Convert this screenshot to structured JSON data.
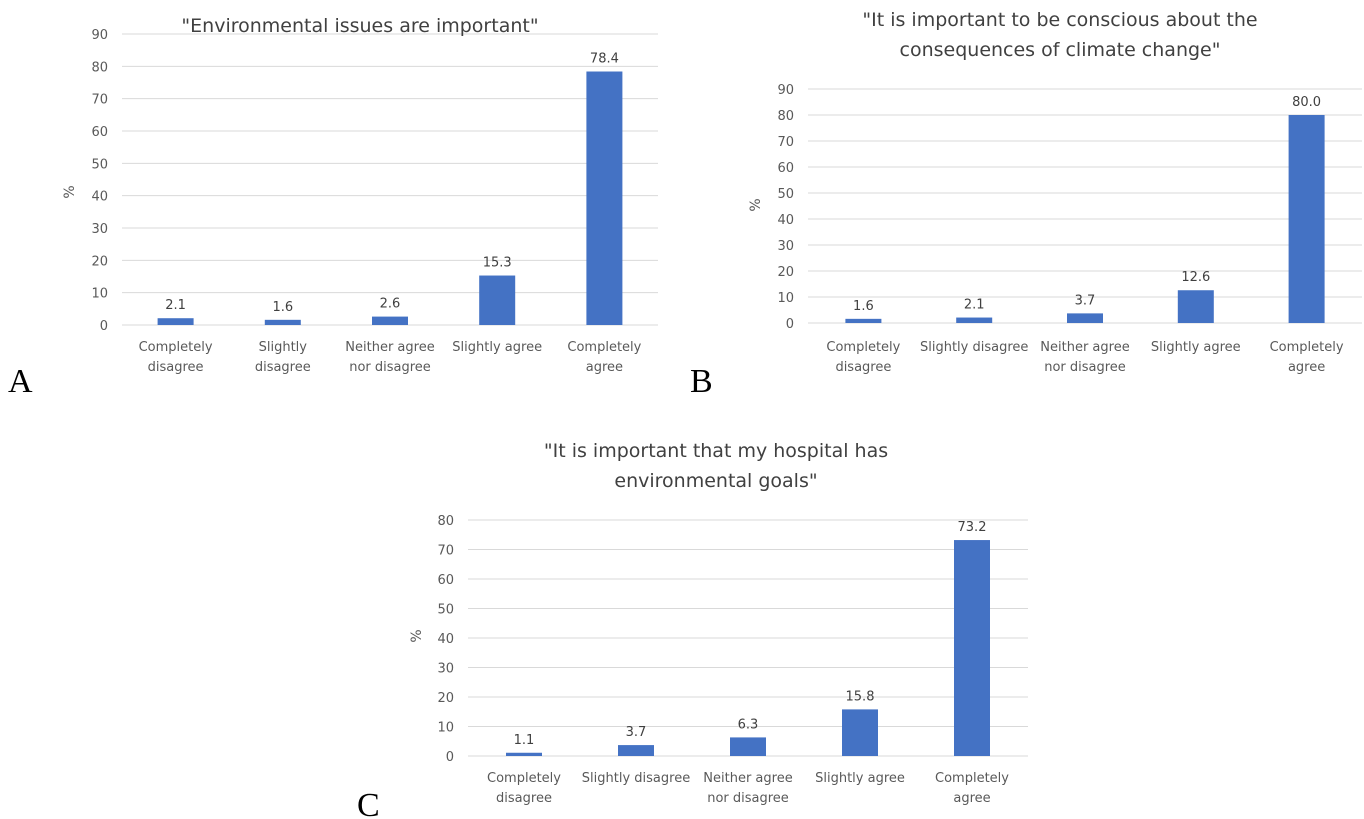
{
  "colors": {
    "bar": "#4472c4",
    "grid": "#d9d9d9",
    "text": "#595959"
  },
  "chart_data": [
    {
      "panel": "A",
      "type": "bar",
      "title_lines": [
        "\"Environmental issues are important\""
      ],
      "xlabel": "",
      "ylabel": "%",
      "categories": [
        [
          "Completely",
          "disagree"
        ],
        [
          "Slightly",
          "disagree"
        ],
        [
          "Neither agree",
          "nor disagree"
        ],
        [
          "Slightly agree"
        ],
        [
          "Completely",
          "agree"
        ]
      ],
      "values": [
        2.1,
        1.6,
        2.6,
        15.3,
        78.4
      ],
      "value_labels": [
        "2.1",
        "1.6",
        "2.6",
        "15.3",
        "78.4"
      ],
      "ylim": [
        0,
        90
      ],
      "yticks": [
        0,
        10,
        20,
        30,
        40,
        50,
        60,
        70,
        80,
        90
      ],
      "grid": true,
      "legend": "none"
    },
    {
      "panel": "B",
      "type": "bar",
      "title_lines": [
        "\"It is important to be conscious about the",
        "consequences  of climate change\""
      ],
      "xlabel": "",
      "ylabel": "%",
      "categories": [
        [
          "Completely",
          "disagree"
        ],
        [
          "Slightly disagree"
        ],
        [
          "Neither agree",
          "nor disagree"
        ],
        [
          "Slightly agree"
        ],
        [
          "Completely",
          "agree"
        ]
      ],
      "values": [
        1.6,
        2.1,
        3.7,
        12.6,
        80.0
      ],
      "value_labels": [
        "1.6",
        "2.1",
        "3.7",
        "12.6",
        "80.0"
      ],
      "ylim": [
        0,
        90
      ],
      "yticks": [
        0,
        10,
        20,
        30,
        40,
        50,
        60,
        70,
        80,
        90
      ],
      "grid": true,
      "legend": "none"
    },
    {
      "panel": "C",
      "type": "bar",
      "title_lines": [
        "\"It is important that my hospital has",
        "environmental goals\""
      ],
      "xlabel": "",
      "ylabel": "%",
      "categories": [
        [
          "Completely",
          "disagree"
        ],
        [
          "Slightly disagree"
        ],
        [
          "Neither agree",
          "nor disagree"
        ],
        [
          "Slightly agree"
        ],
        [
          "Completely",
          "agree"
        ]
      ],
      "values": [
        1.1,
        3.7,
        6.3,
        15.8,
        73.2
      ],
      "value_labels": [
        "1.1",
        "3.7",
        "6.3",
        "15.8",
        "73.2"
      ],
      "ylim": [
        0,
        80
      ],
      "yticks": [
        0,
        10,
        20,
        30,
        40,
        50,
        60,
        70,
        80
      ],
      "grid": true,
      "legend": "none"
    }
  ]
}
